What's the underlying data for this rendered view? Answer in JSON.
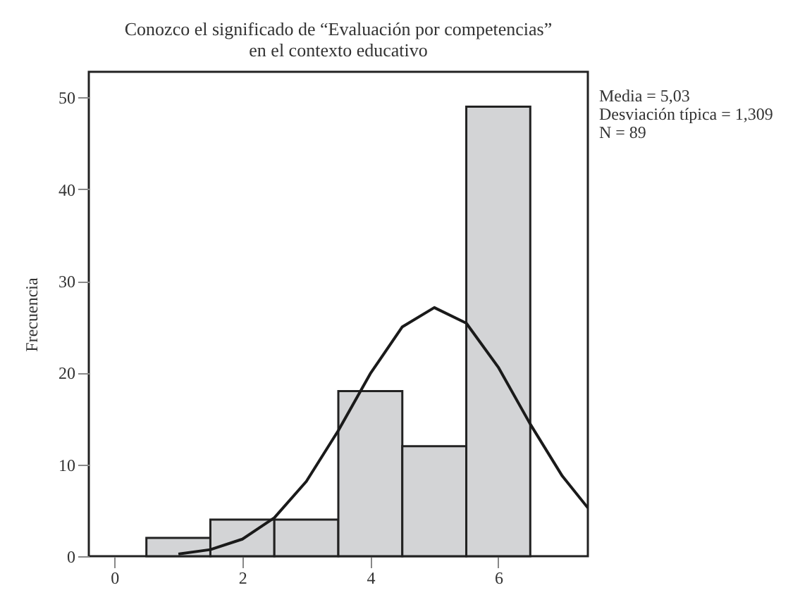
{
  "chart_data": {
    "type": "histogram",
    "title": [
      "Conozco el significado de “Evaluación por competencias”",
      "en el contexto educativo"
    ],
    "ylabel": "Frecuencia",
    "bins": [
      0.5,
      1.5,
      2.5,
      3.5,
      4.5,
      5.5,
      6.5
    ],
    "values": [
      2,
      4,
      4,
      18,
      12,
      49
    ],
    "color": "#d3d4d6",
    "series": [
      {
        "type": "line",
        "color": "#1a1a1a",
        "x": [
          1,
          1.5,
          2,
          2.5,
          3,
          3.5,
          4,
          4.5,
          5,
          5.5,
          6,
          6.5,
          7,
          7.4
        ],
        "values": [
          0.24,
          0.72,
          1.86,
          4.19,
          8.15,
          13.7,
          19.9,
          25.0,
          27.1,
          25.4,
          20.6,
          14.4,
          8.74,
          5.27
        ]
      }
    ],
    "xlim": [
      -0.4,
      7.4
    ],
    "xticks": [
      0,
      2,
      4,
      6
    ],
    "ylim": [
      0,
      52.8
    ],
    "yticks": [
      0,
      10,
      20,
      30,
      40,
      50
    ],
    "grid": false,
    "annotations": [
      "Media = 5,03",
      "Desviación típica = 1,309",
      "N = 89"
    ]
  }
}
